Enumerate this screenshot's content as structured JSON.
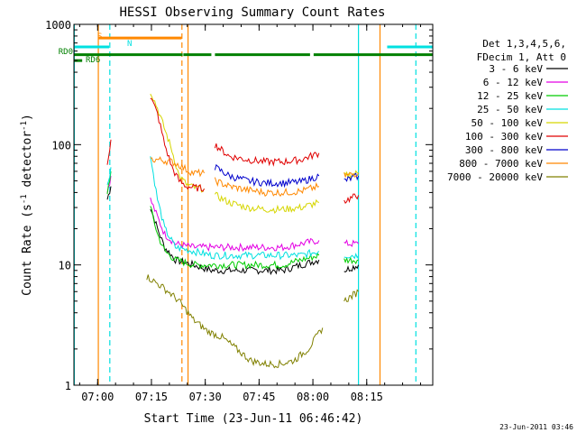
{
  "chart_data": {
    "type": "line",
    "title": "HESSI Observing Summary Count Rates",
    "xlabel": "Start Time (23-Jun-11 06:46:42)",
    "ylabel_main": "Count Rate (s",
    "ylabel_sup1": "-1",
    "ylabel_mid": " detector",
    "ylabel_sup2": "-1",
    "ylabel_end": ")",
    "yscale": "log",
    "ylim": [
      1,
      1000
    ],
    "xlim_minutes": [
      6.7,
      106.7
    ],
    "x_ticks": [
      {
        "label": "07:00",
        "min": 13.3
      },
      {
        "label": "07:15",
        "min": 28.3
      },
      {
        "label": "07:30",
        "min": 43.3
      },
      {
        "label": "07:45",
        "min": 58.3
      },
      {
        "label": "08:00",
        "min": 73.3
      },
      {
        "label": "08:15",
        "min": 88.3
      }
    ],
    "y_ticks": [
      {
        "label": "1",
        "v": 1
      },
      {
        "label": "10",
        "v": 10
      },
      {
        "label": "100",
        "v": 100
      },
      {
        "label": "1000",
        "v": 1000
      }
    ],
    "legend_header": [
      "Det 1,3,4,5,6,",
      "FDecim 1, Att 0"
    ],
    "series": [
      {
        "name": "3 - 6 keV",
        "color": "#000000",
        "x": [
          15,
          16,
          17,
          26,
          28,
          30,
          32,
          35,
          40,
          45,
          50,
          55,
          60,
          65,
          70,
          75,
          79,
          82,
          86
        ],
        "y": [
          null,
          35,
          45,
          null,
          30,
          20,
          14,
          11,
          10,
          9,
          9,
          9,
          9,
          9,
          10,
          11,
          null,
          9,
          10
        ]
      },
      {
        "name": "6 - 12 keV",
        "color": "#e400e4",
        "x": [
          15,
          16,
          17,
          26,
          28,
          30,
          32,
          35,
          40,
          45,
          50,
          55,
          60,
          65,
          70,
          75,
          79,
          82,
          86
        ],
        "y": [
          null,
          40,
          55,
          null,
          35,
          25,
          18,
          15,
          14,
          14,
          14,
          14,
          14,
          14,
          15,
          16,
          null,
          15,
          15
        ]
      },
      {
        "name": "12 - 25 keV",
        "color": "#00cc00",
        "x": [
          15,
          16,
          17,
          26,
          28,
          30,
          32,
          35,
          40,
          45,
          50,
          55,
          60,
          65,
          70,
          75,
          79,
          82,
          86
        ],
        "y": [
          null,
          40,
          60,
          null,
          30,
          18,
          13,
          11,
          10,
          10,
          10,
          10,
          10,
          10,
          11,
          12,
          null,
          11,
          11
        ]
      },
      {
        "name": "25 - 50 keV",
        "color": "#00e0e0",
        "x": [
          15,
          16,
          17,
          26,
          28,
          30,
          32,
          35,
          40,
          45,
          50,
          55,
          60,
          65,
          70,
          75,
          79,
          82,
          86
        ],
        "y": [
          null,
          45,
          65,
          null,
          80,
          35,
          20,
          14,
          13,
          12,
          12,
          12,
          12,
          12,
          12,
          13,
          null,
          12,
          12
        ]
      },
      {
        "name": "50 - 100 keV",
        "color": "#d6d600",
        "x": [
          26,
          28,
          30,
          34,
          36,
          38,
          40,
          43,
          44,
          46,
          50,
          55,
          60,
          65,
          70,
          75,
          79,
          82,
          86
        ],
        "y": [
          null,
          280,
          200,
          90,
          55,
          47,
          44,
          43,
          null,
          38,
          33,
          30,
          29,
          29,
          30,
          33,
          null,
          55,
          58
        ]
      },
      {
        "name": "100 - 300 keV",
        "color": "#e00000",
        "x": [
          15,
          16,
          17,
          26,
          28,
          30,
          32,
          34,
          36,
          38,
          40,
          43,
          44,
          46,
          50,
          55,
          60,
          65,
          70,
          75,
          79,
          82,
          86
        ],
        "y": [
          null,
          70,
          110,
          null,
          250,
          180,
          100,
          65,
          50,
          45,
          44,
          43,
          null,
          100,
          80,
          75,
          72,
          72,
          75,
          85,
          null,
          34,
          38
        ]
      },
      {
        "name": "300 - 800 keV",
        "color": "#0000cc",
        "x": [
          44,
          46,
          50,
          55,
          60,
          65,
          70,
          75,
          79,
          82,
          86
        ],
        "y": [
          null,
          65,
          55,
          50,
          48,
          48,
          49,
          55,
          null,
          50,
          55
        ]
      },
      {
        "name": "800 - 7000 keV",
        "color": "#ff8800",
        "x": [
          26,
          28,
          30,
          34,
          36,
          38,
          40,
          43,
          44,
          46,
          50,
          55,
          60,
          65,
          70,
          75,
          79,
          82,
          86
        ],
        "y": [
          null,
          75,
          75,
          72,
          68,
          62,
          58,
          58,
          null,
          50,
          45,
          42,
          40,
          40,
          41,
          45,
          null,
          55,
          58
        ]
      },
      {
        "name": "7000 - 20000 keV",
        "color": "#808000",
        "x": [
          26,
          27,
          30,
          33,
          36,
          40,
          44,
          48,
          52,
          56,
          60,
          64,
          68,
          72,
          76,
          79,
          82,
          86
        ],
        "y": [
          null,
          8,
          7,
          6,
          5,
          3.5,
          2.8,
          2.5,
          2,
          1.6,
          1.5,
          1.5,
          1.6,
          2,
          3,
          null,
          5,
          6
        ]
      }
    ],
    "flags": [
      {
        "name": "S",
        "color": "#ff8800",
        "segments": [
          [
            13.5,
            36.7
          ]
        ],
        "level": 770
      },
      {
        "name": "N",
        "color": "#00e0e0",
        "segments": [
          [
            6.7,
            16.5
          ],
          [
            94.0,
            106.7
          ]
        ],
        "level": 650
      },
      {
        "name": "RD0",
        "color": "#008000",
        "segments": [
          [
            6.7,
            37.0
          ],
          [
            37.2,
            45.0
          ],
          [
            46.0,
            72.5
          ],
          [
            73.5,
            106.7
          ]
        ],
        "level": 560
      },
      {
        "name": "RD6",
        "color": "#008000",
        "segments": [
          [
            6.7,
            9.0
          ]
        ],
        "level": 500
      }
    ],
    "vlines": [
      {
        "min": 6.8,
        "color": "#00e0e0",
        "style": "solid"
      },
      {
        "min": 13.5,
        "color": "#ff8800",
        "style": "solid"
      },
      {
        "min": 16.7,
        "color": "#00e0e0",
        "style": "dashed"
      },
      {
        "min": 36.8,
        "color": "#ff8800",
        "style": "dashed"
      },
      {
        "min": 38.5,
        "color": "#ff8800",
        "style": "solid"
      },
      {
        "min": 86.0,
        "color": "#00e0e0",
        "style": "solid"
      },
      {
        "min": 92.0,
        "color": "#ff8800",
        "style": "solid"
      },
      {
        "min": 102.0,
        "color": "#00e0e0",
        "style": "dashed"
      }
    ]
  },
  "footer_timestamp": "23-Jun-2011 03:46"
}
